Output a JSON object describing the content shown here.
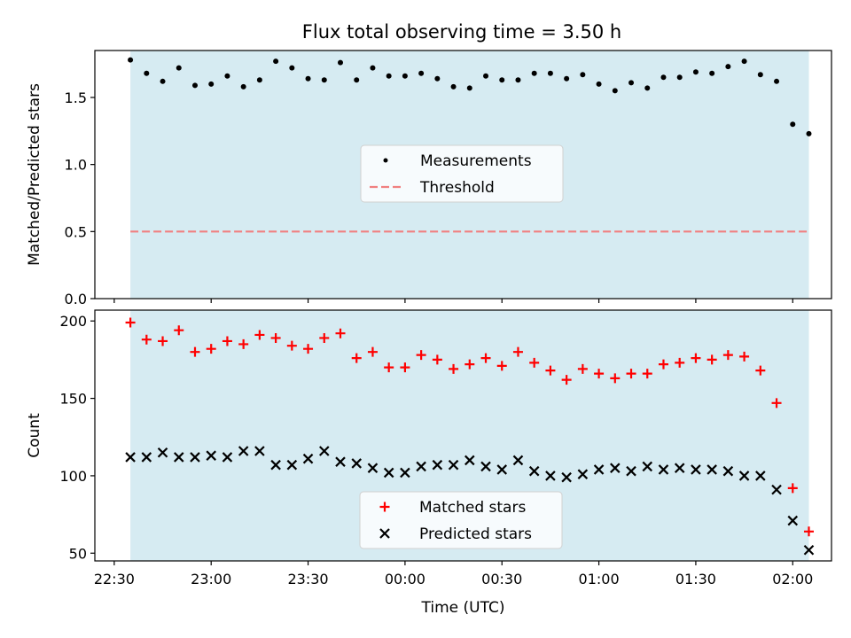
{
  "title": "Flux total observing time = 3.50 h",
  "colors": {
    "background_span": "#add8e6",
    "measurements": "#000000",
    "threshold": "#f08080",
    "matched": "#ff0000",
    "predicted": "#000000"
  },
  "chart_data": [
    {
      "type": "scatter",
      "name": "top-panel",
      "ylabel": "Matched/Predicted stars",
      "ylim": [
        0,
        1.85
      ],
      "yticks": [
        0.0,
        0.5,
        1.0,
        1.5
      ],
      "yticklabels": [
        "0.0",
        "0.5",
        "1.0",
        "1.5"
      ],
      "xlim": [
        "22:24",
        "02:12"
      ],
      "shaded_span": [
        "22:35",
        "02:05"
      ],
      "threshold": 0.5,
      "legend": {
        "placement": "center",
        "entries": [
          "Measurements",
          "Threshold"
        ]
      },
      "series": [
        {
          "name": "Measurements",
          "marker": "dot",
          "x": [
            "22:35",
            "22:40",
            "22:45",
            "22:50",
            "22:55",
            "23:00",
            "23:05",
            "23:10",
            "23:15",
            "23:20",
            "23:25",
            "23:30",
            "23:35",
            "23:40",
            "23:45",
            "23:50",
            "23:55",
            "00:00",
            "00:05",
            "00:10",
            "00:15",
            "00:20",
            "00:25",
            "00:30",
            "00:35",
            "00:40",
            "00:45",
            "00:50",
            "00:55",
            "01:00",
            "01:05",
            "01:10",
            "01:15",
            "01:20",
            "01:25",
            "01:30",
            "01:35",
            "01:40",
            "01:45",
            "01:50",
            "01:55",
            "02:00",
            "02:05"
          ],
          "y": [
            1.78,
            1.68,
            1.62,
            1.72,
            1.59,
            1.6,
            1.66,
            1.58,
            1.63,
            1.77,
            1.72,
            1.64,
            1.63,
            1.76,
            1.63,
            1.72,
            1.66,
            1.66,
            1.68,
            1.64,
            1.58,
            1.57,
            1.66,
            1.63,
            1.63,
            1.68,
            1.68,
            1.64,
            1.67,
            1.6,
            1.55,
            1.61,
            1.57,
            1.65,
            1.65,
            1.69,
            1.68,
            1.73,
            1.77,
            1.67,
            1.62,
            1.3,
            1.23
          ]
        }
      ]
    },
    {
      "type": "scatter",
      "name": "bottom-panel",
      "xlabel": "Time (UTC)",
      "ylabel": "Count",
      "ylim": [
        45,
        207
      ],
      "yticks": [
        50,
        100,
        150,
        200
      ],
      "yticklabels": [
        "50",
        "100",
        "150",
        "200"
      ],
      "xlim": [
        "22:24",
        "02:12"
      ],
      "xticks": [
        "22:30",
        "23:00",
        "23:30",
        "00:00",
        "00:30",
        "01:00",
        "01:30",
        "02:00"
      ],
      "shaded_span": [
        "22:35",
        "02:05"
      ],
      "legend": {
        "placement": "bottom-center",
        "entries": [
          "Matched stars",
          "Predicted stars"
        ]
      },
      "series": [
        {
          "name": "Matched stars",
          "marker": "plus",
          "x": [
            "22:35",
            "22:40",
            "22:45",
            "22:50",
            "22:55",
            "23:00",
            "23:05",
            "23:10",
            "23:15",
            "23:20",
            "23:25",
            "23:30",
            "23:35",
            "23:40",
            "23:45",
            "23:50",
            "23:55",
            "00:00",
            "00:05",
            "00:10",
            "00:15",
            "00:20",
            "00:25",
            "00:30",
            "00:35",
            "00:40",
            "00:45",
            "00:50",
            "00:55",
            "01:00",
            "01:05",
            "01:10",
            "01:15",
            "01:20",
            "01:25",
            "01:30",
            "01:35",
            "01:40",
            "01:45",
            "01:50",
            "01:55",
            "02:00",
            "02:05"
          ],
          "y": [
            199,
            188,
            187,
            194,
            180,
            182,
            187,
            185,
            191,
            189,
            184,
            182,
            189,
            192,
            176,
            180,
            170,
            170,
            178,
            175,
            169,
            172,
            176,
            171,
            180,
            173,
            168,
            162,
            169,
            166,
            163,
            166,
            166,
            172,
            173,
            176,
            175,
            178,
            177,
            168,
            147,
            92,
            64
          ]
        },
        {
          "name": "Predicted stars",
          "marker": "x",
          "x": [
            "22:35",
            "22:40",
            "22:45",
            "22:50",
            "22:55",
            "23:00",
            "23:05",
            "23:10",
            "23:15",
            "23:20",
            "23:25",
            "23:30",
            "23:35",
            "23:40",
            "23:45",
            "23:50",
            "23:55",
            "00:00",
            "00:05",
            "00:10",
            "00:15",
            "00:20",
            "00:25",
            "00:30",
            "00:35",
            "00:40",
            "00:45",
            "00:50",
            "00:55",
            "01:00",
            "01:05",
            "01:10",
            "01:15",
            "01:20",
            "01:25",
            "01:30",
            "01:35",
            "01:40",
            "01:45",
            "01:50",
            "01:55",
            "02:00",
            "02:05"
          ],
          "y": [
            112,
            112,
            115,
            112,
            112,
            113,
            112,
            116,
            116,
            107,
            107,
            111,
            116,
            109,
            108,
            105,
            102,
            102,
            106,
            107,
            107,
            110,
            106,
            104,
            110,
            103,
            100,
            99,
            101,
            104,
            105,
            103,
            106,
            104,
            105,
            104,
            104,
            103,
            100,
            100,
            91,
            71,
            52
          ]
        }
      ]
    }
  ]
}
